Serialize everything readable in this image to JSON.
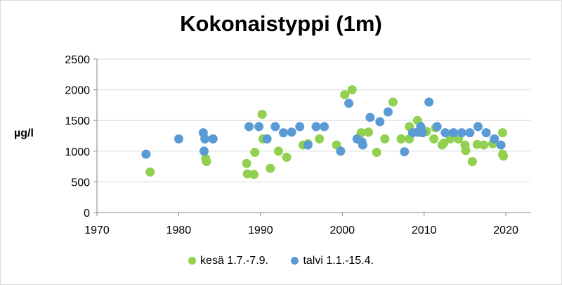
{
  "chart_data": {
    "type": "scatter",
    "title": "Kokonaistyppi (1m)",
    "ylabel": "µg/l",
    "xlabel": "",
    "xlim": [
      1970,
      2023
    ],
    "ylim": [
      0,
      2500
    ],
    "xticks": [
      1970,
      1980,
      1990,
      2000,
      2010,
      2020
    ],
    "yticks": [
      0,
      500,
      1000,
      1500,
      2000,
      2500
    ],
    "grid": "horizontal",
    "legend_position": "bottom",
    "series": [
      {
        "name": "kesä 1.7.-7.9.",
        "color": "#92d050",
        "points": [
          [
            1976.5,
            660
          ],
          [
            1983.3,
            880
          ],
          [
            1983.4,
            830
          ],
          [
            1988.3,
            800
          ],
          [
            1988.4,
            630
          ],
          [
            1989.2,
            620
          ],
          [
            1989.3,
            980
          ],
          [
            1990.2,
            1600
          ],
          [
            1990.3,
            1200
          ],
          [
            1991.2,
            720
          ],
          [
            1992.2,
            1000
          ],
          [
            1993.2,
            900
          ],
          [
            1995.2,
            1100
          ],
          [
            1995.8,
            1120
          ],
          [
            1997.2,
            1200
          ],
          [
            1999.3,
            1100
          ],
          [
            2000.3,
            1920
          ],
          [
            2001.2,
            2000
          ],
          [
            2002.3,
            1300
          ],
          [
            2003.2,
            1310
          ],
          [
            2004.2,
            980
          ],
          [
            2005.2,
            1200
          ],
          [
            2006.2,
            1800
          ],
          [
            2007.2,
            1200
          ],
          [
            2008.2,
            1400
          ],
          [
            2008.2,
            1200
          ],
          [
            2009.2,
            1500
          ],
          [
            2010.3,
            1320
          ],
          [
            2011.2,
            1200
          ],
          [
            2011.4,
            1380
          ],
          [
            2012.2,
            1100
          ],
          [
            2012.4,
            1130
          ],
          [
            2013.2,
            1200
          ],
          [
            2014.2,
            1200
          ],
          [
            2015.0,
            1100
          ],
          [
            2015.1,
            1010
          ],
          [
            2015.9,
            830
          ],
          [
            2016.5,
            1110
          ],
          [
            2017.3,
            1100
          ],
          [
            2018.4,
            1120
          ],
          [
            2019.6,
            1300
          ],
          [
            2019.7,
            920
          ],
          [
            2019.6,
            950
          ]
        ]
      },
      {
        "name": "talvi 1.1.-15.4.",
        "color": "#5b9bd5",
        "points": [
          [
            1976.0,
            950
          ],
          [
            1980.0,
            1200
          ],
          [
            1983.0,
            1300
          ],
          [
            1983.1,
            1000
          ],
          [
            1983.2,
            1200
          ],
          [
            1984.2,
            1200
          ],
          [
            1988.6,
            1400
          ],
          [
            1989.8,
            1400
          ],
          [
            1990.8,
            1200
          ],
          [
            1991.8,
            1400
          ],
          [
            1992.8,
            1300
          ],
          [
            1993.8,
            1310
          ],
          [
            1994.8,
            1400
          ],
          [
            1995.8,
            1100
          ],
          [
            1996.8,
            1400
          ],
          [
            1997.8,
            1400
          ],
          [
            1999.8,
            1000
          ],
          [
            2000.8,
            1780
          ],
          [
            2001.8,
            1200
          ],
          [
            2002.4,
            1150
          ],
          [
            2002.5,
            1100
          ],
          [
            2003.4,
            1550
          ],
          [
            2004.6,
            1480
          ],
          [
            2005.6,
            1640
          ],
          [
            2007.6,
            990
          ],
          [
            2008.6,
            1300
          ],
          [
            2009.2,
            1310
          ],
          [
            2009.6,
            1400
          ],
          [
            2009.8,
            1300
          ],
          [
            2010.6,
            1800
          ],
          [
            2011.6,
            1400
          ],
          [
            2012.6,
            1300
          ],
          [
            2013.6,
            1300
          ],
          [
            2014.6,
            1300
          ],
          [
            2015.6,
            1300
          ],
          [
            2016.6,
            1400
          ],
          [
            2017.6,
            1300
          ],
          [
            2018.6,
            1200
          ],
          [
            2019.4,
            1100
          ]
        ]
      }
    ]
  }
}
